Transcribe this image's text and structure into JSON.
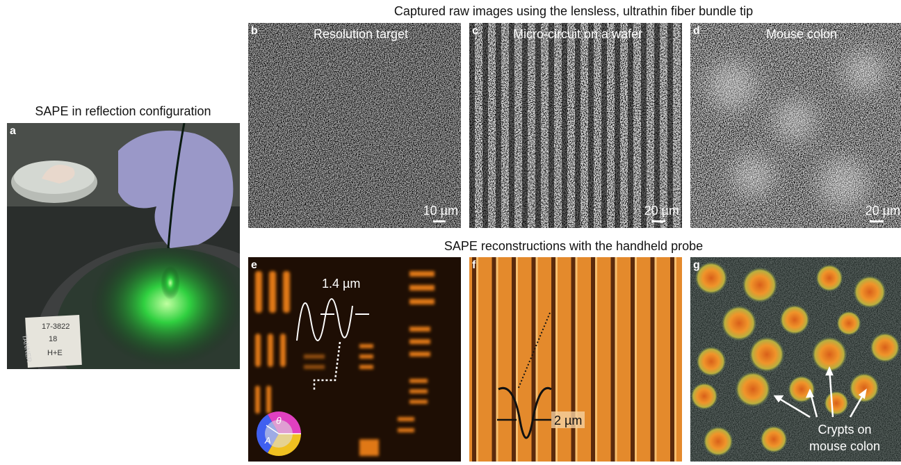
{
  "panel_a": {
    "label": "a",
    "title": "SAPE in reflection configuration",
    "photo_labels": [
      "17-3822",
      "18",
      "H+E",
      "TANNER"
    ]
  },
  "raw_images": {
    "title": "Captured raw images using the lensless, ultrathin fiber bundle tip",
    "panels": [
      {
        "label": "b",
        "caption": "Resolution target",
        "scale_bar": "10 µm"
      },
      {
        "label": "c",
        "caption": "Micro-circuit on a wafer",
        "scale_bar": "20 µm"
      },
      {
        "label": "d",
        "caption": "Mouse colon",
        "scale_bar": "20 µm"
      }
    ]
  },
  "reconstructions": {
    "title": "SAPE reconstructions with the handheld probe",
    "panels": [
      {
        "label": "e",
        "annotation": "1.4 µm",
        "wheel_labels": [
          "θ",
          "A"
        ]
      },
      {
        "label": "f",
        "annotation": "2 µm"
      },
      {
        "label": "g",
        "annotation": [
          "Crypts on",
          "mouse colon"
        ]
      }
    ]
  }
}
